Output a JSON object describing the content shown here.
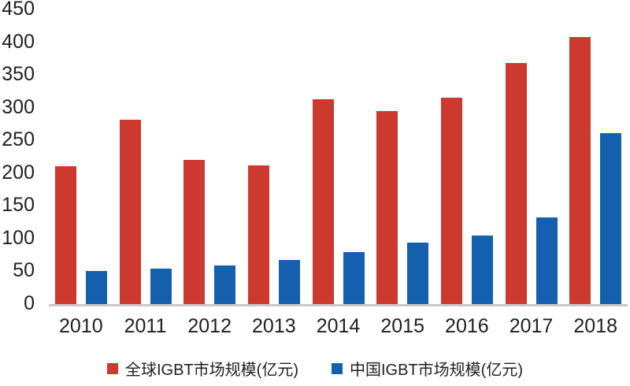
{
  "chart_data": {
    "type": "bar",
    "title": "",
    "xlabel": "",
    "ylabel": "",
    "categories": [
      "2010",
      "2011",
      "2012",
      "2013",
      "2014",
      "2015",
      "2016",
      "2017",
      "2018"
    ],
    "series": [
      {
        "name": "全球IGBT市场规模(亿元)",
        "color": "#cc392e",
        "values": [
          210,
          282,
          220,
          212,
          313,
          295,
          315,
          368,
          408
        ]
      },
      {
        "name": "中国IGBT市场规模(亿元)",
        "color": "#1460ae",
        "values": [
          50,
          54,
          59,
          68,
          80,
          94,
          105,
          132,
          261
        ]
      }
    ],
    "ylim": [
      0,
      450
    ],
    "yticks": [
      450,
      400,
      350,
      300,
      250,
      200,
      150,
      100,
      50,
      0
    ],
    "grid": false,
    "legend_position": "bottom",
    "background_color": "#ffffff",
    "axis_line_color": "#c9c9c9",
    "text_color": "#1f1f1f"
  }
}
